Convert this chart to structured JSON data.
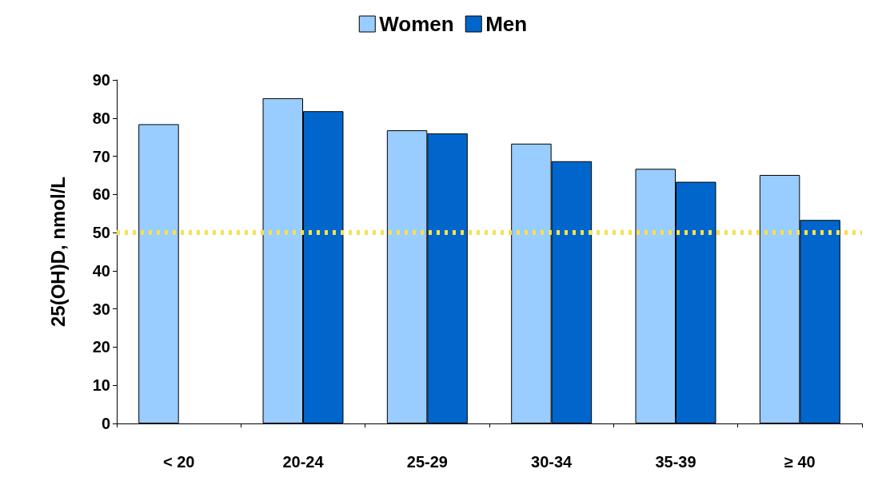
{
  "chart_data": {
    "type": "bar",
    "ylabel": "25(OH)D, nmol/L",
    "categories": [
      "< 20",
      "20-24",
      "25-29",
      "30-34",
      "35-39",
      "≥ 40"
    ],
    "series": [
      {
        "name": "Women",
        "color": "#99ccff",
        "values": [
          78.4,
          85.2,
          76.8,
          73.3,
          66.7,
          65.1
        ]
      },
      {
        "name": "Men",
        "color": "#0066cc",
        "values": [
          null,
          81.8,
          76,
          68.7,
          63.3,
          53.3
        ]
      }
    ],
    "ylim": [
      0,
      90
    ],
    "yticks": [
      0,
      10,
      20,
      30,
      40,
      50,
      60,
      70,
      80,
      90
    ],
    "grid": false,
    "legend": "top",
    "ref_lines": [
      {
        "axis": "y",
        "value": 50,
        "color": "#f5e050",
        "line_style": "dotted"
      }
    ]
  }
}
